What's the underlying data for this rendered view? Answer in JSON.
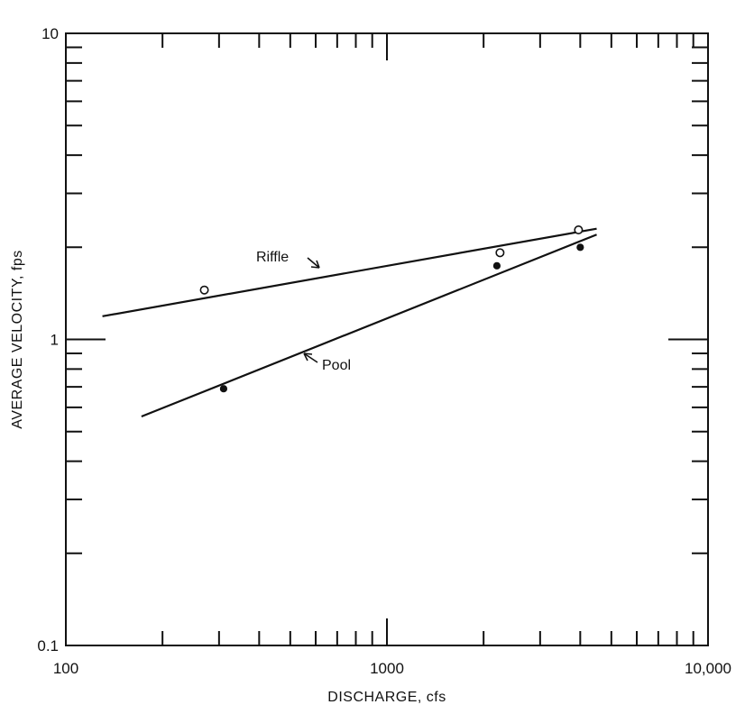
{
  "chart_data": {
    "type": "scatter",
    "title": "",
    "xlabel": "DISCHARGE, cfs",
    "ylabel": "AVERAGE VELOCITY, fps",
    "x_scale": "log",
    "y_scale": "log",
    "xlim": [
      100,
      10000
    ],
    "ylim": [
      0.1,
      10
    ],
    "x_ticks": [
      {
        "value": 100,
        "label": "100"
      },
      {
        "value": 1000,
        "label": "1000"
      },
      {
        "value": 10000,
        "label": "10,000"
      }
    ],
    "y_ticks": [
      {
        "value": 0.1,
        "label": "0.1"
      },
      {
        "value": 1,
        "label": "1"
      },
      {
        "value": 10,
        "label": "10"
      }
    ],
    "grid": false,
    "series": [
      {
        "name": "Riffle",
        "marker": "open-circle",
        "points": [
          {
            "x": 270,
            "y": 1.45
          },
          {
            "x": 2250,
            "y": 1.92
          },
          {
            "x": 3950,
            "y": 2.28
          }
        ],
        "fit_line": [
          {
            "x": 130,
            "y": 1.19
          },
          {
            "x": 4500,
            "y": 2.3
          }
        ]
      },
      {
        "name": "Pool",
        "marker": "filled-circle",
        "points": [
          {
            "x": 310,
            "y": 0.69
          },
          {
            "x": 2200,
            "y": 1.74
          },
          {
            "x": 4000,
            "y": 2.0
          }
        ],
        "fit_line": [
          {
            "x": 172,
            "y": 0.56
          },
          {
            "x": 4500,
            "y": 2.2
          }
        ]
      }
    ]
  }
}
